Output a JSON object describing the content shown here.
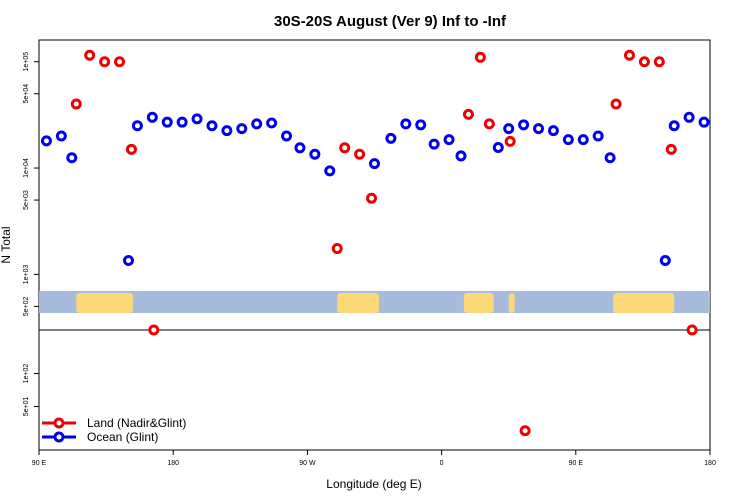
{
  "chart_data": {
    "type": "scatter",
    "title": "30S-20S August (Ver 9)   Inf to -Inf",
    "xlabel": "Longitude (deg E)",
    "ylabel": "N Total",
    "x_ticks": [
      {
        "lon": -270,
        "label": "90 E"
      },
      {
        "lon": -180,
        "label": "180"
      },
      {
        "lon": -90,
        "label": "90 W"
      },
      {
        "lon": 0,
        "label": "0"
      },
      {
        "lon": 90,
        "label": "90 E"
      },
      {
        "lon": 180,
        "label": "180"
      }
    ],
    "xlim": [
      -270,
      180
    ],
    "y_scale": "log",
    "upper_panel": {
      "ylim": [
        300,
        160000
      ],
      "y_ticks": [
        {
          "value": 500,
          "label": "5e+02"
        },
        {
          "value": 1000,
          "label": "1e+03"
        },
        {
          "value": 5000,
          "label": "5e+03"
        },
        {
          "value": 10000,
          "label": "1e+04"
        },
        {
          "value": 50000,
          "label": "5e+04"
        },
        {
          "value": 100000,
          "label": "1e+05"
        }
      ]
    },
    "lower_panel": {
      "ylim": [
        20,
        250
      ],
      "y_ticks": [
        {
          "value": 50,
          "label": "5e+01"
        },
        {
          "value": 100,
          "label": "1e+02"
        }
      ]
    },
    "land_bands": [
      [
        -245,
        -207
      ],
      [
        -70,
        -42
      ],
      [
        15,
        35
      ],
      [
        45,
        49
      ],
      [
        115,
        156
      ]
    ],
    "series": [
      {
        "name": "Land (Nadir&Glint)",
        "color": "#ee0000",
        "points": [
          {
            "lon": -245,
            "value": 40000
          },
          {
            "lon": -236,
            "value": 115000
          },
          {
            "lon": -226,
            "value": 100000
          },
          {
            "lon": -216,
            "value": 100000
          },
          {
            "lon": -208,
            "value": 15000
          },
          {
            "lon": -193,
            "value": 250
          },
          {
            "lon": -70,
            "value": 1750
          },
          {
            "lon": -65,
            "value": 15500
          },
          {
            "lon": -55,
            "value": 13500
          },
          {
            "lon": -47,
            "value": 5200
          },
          {
            "lon": 18,
            "value": 32000
          },
          {
            "lon": 26,
            "value": 110000
          },
          {
            "lon": 32,
            "value": 26000
          },
          {
            "lon": 46,
            "value": 17800
          },
          {
            "lon": 56,
            "value": 30
          },
          {
            "lon": 117,
            "value": 40000
          },
          {
            "lon": 126,
            "value": 115000
          },
          {
            "lon": 136,
            "value": 100000
          },
          {
            "lon": 146,
            "value": 100000
          },
          {
            "lon": 154,
            "value": 15000
          },
          {
            "lon": 168,
            "value": 250
          }
        ]
      },
      {
        "name": "Ocean (Glint)",
        "color": "#0000ee",
        "points": [
          {
            "lon": -265,
            "value": 18000
          },
          {
            "lon": -255,
            "value": 20000
          },
          {
            "lon": -248,
            "value": 12500
          },
          {
            "lon": -210,
            "value": 1350
          },
          {
            "lon": -204,
            "value": 25000
          },
          {
            "lon": -194,
            "value": 30000
          },
          {
            "lon": -184,
            "value": 27000
          },
          {
            "lon": -174,
            "value": 27000
          },
          {
            "lon": -164,
            "value": 29000
          },
          {
            "lon": -154,
            "value": 25000
          },
          {
            "lon": -144,
            "value": 22500
          },
          {
            "lon": -134,
            "value": 23500
          },
          {
            "lon": -124,
            "value": 26000
          },
          {
            "lon": -114,
            "value": 26500
          },
          {
            "lon": -104,
            "value": 20000
          },
          {
            "lon": -95,
            "value": 15500
          },
          {
            "lon": -85,
            "value": 13500
          },
          {
            "lon": -75,
            "value": 9400
          },
          {
            "lon": -45,
            "value": 11000
          },
          {
            "lon": -34,
            "value": 19000
          },
          {
            "lon": -24,
            "value": 26000
          },
          {
            "lon": -14,
            "value": 25500
          },
          {
            "lon": -5,
            "value": 16800
          },
          {
            "lon": 5,
            "value": 18500
          },
          {
            "lon": 13,
            "value": 13000
          },
          {
            "lon": 38,
            "value": 15600
          },
          {
            "lon": 45,
            "value": 23500
          },
          {
            "lon": 55,
            "value": 25500
          },
          {
            "lon": 65,
            "value": 23500
          },
          {
            "lon": 75,
            "value": 22500
          },
          {
            "lon": 85,
            "value": 18500
          },
          {
            "lon": 95,
            "value": 18500
          },
          {
            "lon": 105,
            "value": 20000
          },
          {
            "lon": 113,
            "value": 12500
          },
          {
            "lon": 150,
            "value": 1350
          },
          {
            "lon": 156,
            "value": 25000
          },
          {
            "lon": 166,
            "value": 30000
          },
          {
            "lon": 176,
            "value": 27000
          }
        ]
      }
    ],
    "legend_position": "bottom-left",
    "grid": false
  }
}
